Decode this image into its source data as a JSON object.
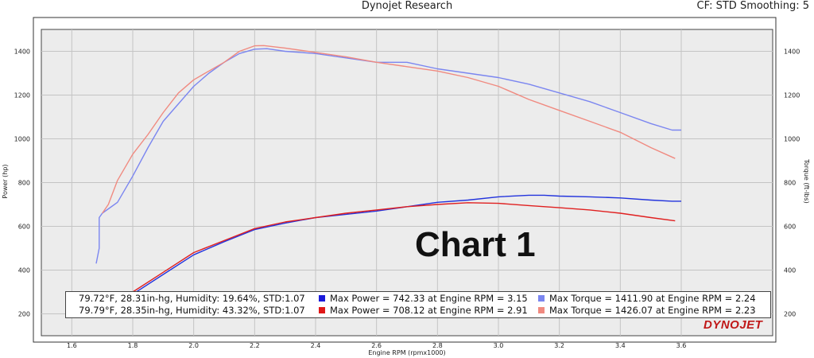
{
  "header": {
    "title": "Dynojet Research",
    "right": "CF: STD Smoothing: 5"
  },
  "annotation": "Chart 1",
  "logo": "DYNOJET",
  "chart_data": {
    "type": "line",
    "title": "Dynojet Research",
    "xlabel": "Engine RPM (rpmx1000)",
    "ylabel_left": "Power (hp)",
    "ylabel_right": "Torque (ft-lbs)",
    "xlim": [
      1.5,
      3.9
    ],
    "ylim": [
      100,
      1500
    ],
    "x_ticks": [
      "1.6",
      "1.8",
      "2.0",
      "2.2",
      "2.4",
      "2.6",
      "2.8",
      "3.0",
      "3.2",
      "3.4",
      "3.6"
    ],
    "y_ticks": [
      "200",
      "400",
      "600",
      "800",
      "1000",
      "1200",
      "1400"
    ],
    "grid": true,
    "colors": {
      "run1_power": "#2233dd",
      "run1_torque": "#7b86f0",
      "run2_power": "#e02020",
      "run2_torque": "#f08a80"
    },
    "series": [
      {
        "key": "run1_torque",
        "x": [
          1.68,
          1.69,
          1.69,
          1.7,
          1.75,
          1.8,
          1.85,
          1.9,
          1.95,
          2.0,
          2.05,
          2.1,
          2.15,
          2.2,
          2.24,
          2.3,
          2.4,
          2.5,
          2.6,
          2.7,
          2.8,
          2.9,
          3.0,
          3.1,
          3.2,
          3.3,
          3.4,
          3.5,
          3.57,
          3.6
        ],
        "y": [
          430,
          500,
          640,
          660,
          710,
          830,
          960,
          1080,
          1160,
          1240,
          1300,
          1350,
          1390,
          1410,
          1412,
          1400,
          1390,
          1370,
          1350,
          1350,
          1320,
          1300,
          1280,
          1250,
          1210,
          1170,
          1120,
          1070,
          1040,
          1040
        ]
      },
      {
        "key": "run2_torque",
        "x": [
          1.7,
          1.72,
          1.75,
          1.8,
          1.85,
          1.9,
          1.95,
          2.0,
          2.05,
          2.1,
          2.15,
          2.2,
          2.23,
          2.3,
          2.4,
          2.5,
          2.6,
          2.7,
          2.8,
          2.9,
          3.0,
          3.1,
          3.2,
          3.3,
          3.4,
          3.5,
          3.58
        ],
        "y": [
          660,
          700,
          810,
          930,
          1020,
          1120,
          1210,
          1270,
          1310,
          1350,
          1400,
          1425,
          1426,
          1415,
          1395,
          1375,
          1350,
          1330,
          1310,
          1280,
          1240,
          1180,
          1130,
          1080,
          1030,
          960,
          910
        ]
      },
      {
        "key": "run1_power",
        "x": [
          1.7,
          1.75,
          1.8,
          1.9,
          2.0,
          2.1,
          2.2,
          2.3,
          2.4,
          2.5,
          2.6,
          2.7,
          2.8,
          2.9,
          3.0,
          3.1,
          3.15,
          3.2,
          3.3,
          3.4,
          3.5,
          3.57,
          3.6
        ],
        "y": [
          190,
          240,
          290,
          380,
          470,
          530,
          585,
          615,
          640,
          655,
          670,
          690,
          710,
          720,
          735,
          742,
          742,
          738,
          735,
          730,
          720,
          715,
          715
        ]
      },
      {
        "key": "run2_power",
        "x": [
          1.7,
          1.75,
          1.8,
          1.9,
          2.0,
          2.1,
          2.2,
          2.3,
          2.4,
          2.5,
          2.6,
          2.7,
          2.8,
          2.9,
          3.0,
          3.1,
          3.2,
          3.3,
          3.4,
          3.5,
          3.58
        ],
        "y": [
          200,
          250,
          300,
          390,
          480,
          535,
          590,
          620,
          640,
          660,
          675,
          690,
          700,
          708,
          705,
          695,
          685,
          675,
          660,
          640,
          625
        ]
      }
    ]
  },
  "legend": [
    {
      "conditions": "79.72°F, 28.31in-hg, Humidity: 19.64%, STD:1.07",
      "power": "Max Power = 742.33 at Engine RPM = 3.15",
      "torque": "Max Torque = 1411.90 at Engine RPM = 2.24"
    },
    {
      "conditions": "79.79°F, 28.35in-hg, Humidity: 43.32%, STD:1.07",
      "power": "Max Power = 708.12 at Engine RPM = 2.91",
      "torque": "Max Torque = 1426.07 at Engine RPM = 2.23"
    }
  ]
}
